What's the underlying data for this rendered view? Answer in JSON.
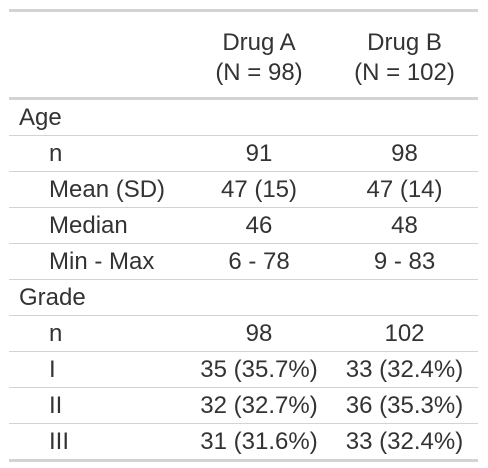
{
  "columns": [
    {
      "name": "Drug A",
      "n": "(N = 98)"
    },
    {
      "name": "Drug B",
      "n": "(N = 102)"
    }
  ],
  "groups": [
    {
      "label": "Age",
      "rows": [
        {
          "label": "n",
          "a": "91",
          "b": "98"
        },
        {
          "label": "Mean (SD)",
          "a": "47 (15)",
          "b": "47 (14)"
        },
        {
          "label": "Median",
          "a": "46",
          "b": "48"
        },
        {
          "label": "Min - Max",
          "a": "6 - 78",
          "b": "9 - 83"
        }
      ]
    },
    {
      "label": "Grade",
      "rows": [
        {
          "label": "n",
          "a": "98",
          "b": "102"
        },
        {
          "label": "I",
          "a": "35 (35.7%)",
          "b": "33 (32.4%)"
        },
        {
          "label": "II",
          "a": "32 (32.7%)",
          "b": "36 (35.3%)"
        },
        {
          "label": "III",
          "a": "31 (31.6%)",
          "b": "33 (32.4%)"
        }
      ]
    }
  ]
}
